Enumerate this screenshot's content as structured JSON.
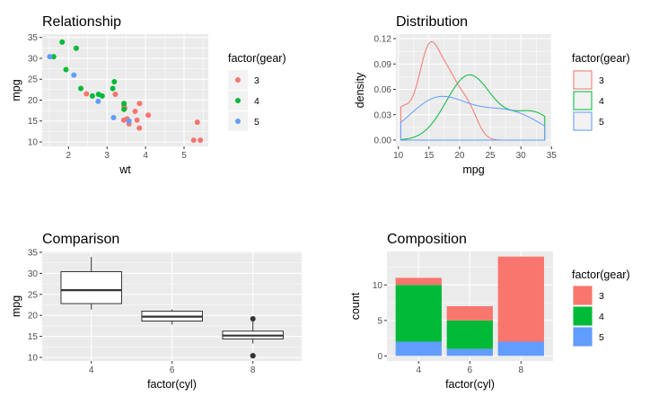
{
  "gear_colors": {
    "3": "#F8766D",
    "4": "#00BA38",
    "5": "#619CFF"
  },
  "chart_data": [
    {
      "type": "scatter",
      "title": "Relationship",
      "xlabel": "wt",
      "ylabel": "mpg",
      "x_ticks": [
        "2",
        "3",
        "4",
        "5"
      ],
      "y_ticks": [
        "10",
        "15",
        "20",
        "25",
        "30",
        "35"
      ],
      "grid": true,
      "legend": {
        "title": "factor(gear)",
        "labels": [
          "3",
          "4",
          "5"
        ],
        "placement": "right"
      },
      "points": [
        {
          "wt": 2.62,
          "mpg": 21.0,
          "gear": "4"
        },
        {
          "wt": 2.875,
          "mpg": 21.0,
          "gear": "4"
        },
        {
          "wt": 2.32,
          "mpg": 22.8,
          "gear": "4"
        },
        {
          "wt": 3.215,
          "mpg": 21.4,
          "gear": "3"
        },
        {
          "wt": 3.44,
          "mpg": 18.7,
          "gear": "3"
        },
        {
          "wt": 3.46,
          "mpg": 18.1,
          "gear": "3"
        },
        {
          "wt": 3.57,
          "mpg": 14.3,
          "gear": "3"
        },
        {
          "wt": 3.19,
          "mpg": 24.4,
          "gear": "4"
        },
        {
          "wt": 3.15,
          "mpg": 22.8,
          "gear": "4"
        },
        {
          "wt": 3.44,
          "mpg": 19.2,
          "gear": "4"
        },
        {
          "wt": 3.44,
          "mpg": 17.8,
          "gear": "4"
        },
        {
          "wt": 4.07,
          "mpg": 16.4,
          "gear": "3"
        },
        {
          "wt": 3.73,
          "mpg": 17.3,
          "gear": "3"
        },
        {
          "wt": 3.78,
          "mpg": 15.2,
          "gear": "3"
        },
        {
          "wt": 5.25,
          "mpg": 10.4,
          "gear": "3"
        },
        {
          "wt": 5.424,
          "mpg": 10.4,
          "gear": "3"
        },
        {
          "wt": 5.345,
          "mpg": 14.7,
          "gear": "3"
        },
        {
          "wt": 2.2,
          "mpg": 32.4,
          "gear": "4"
        },
        {
          "wt": 1.615,
          "mpg": 30.4,
          "gear": "4"
        },
        {
          "wt": 1.835,
          "mpg": 33.9,
          "gear": "4"
        },
        {
          "wt": 2.465,
          "mpg": 21.5,
          "gear": "3"
        },
        {
          "wt": 3.52,
          "mpg": 15.5,
          "gear": "3"
        },
        {
          "wt": 3.435,
          "mpg": 15.2,
          "gear": "3"
        },
        {
          "wt": 3.84,
          "mpg": 13.3,
          "gear": "3"
        },
        {
          "wt": 3.845,
          "mpg": 19.2,
          "gear": "3"
        },
        {
          "wt": 1.935,
          "mpg": 27.3,
          "gear": "4"
        },
        {
          "wt": 2.14,
          "mpg": 26.0,
          "gear": "5"
        },
        {
          "wt": 1.513,
          "mpg": 30.4,
          "gear": "5"
        },
        {
          "wt": 3.17,
          "mpg": 15.8,
          "gear": "5"
        },
        {
          "wt": 2.77,
          "mpg": 19.7,
          "gear": "5"
        },
        {
          "wt": 3.57,
          "mpg": 15.0,
          "gear": "5"
        },
        {
          "wt": 2.78,
          "mpg": 21.4,
          "gear": "4"
        }
      ]
    },
    {
      "type": "area",
      "title": "Distribution",
      "xlabel": "mpg",
      "ylabel": "density",
      "x_ticks": [
        "10",
        "15",
        "20",
        "25",
        "30",
        "35"
      ],
      "y_ticks": [
        "0.00",
        "0.03",
        "0.06",
        "0.09",
        "0.12"
      ],
      "grid": true,
      "legend": {
        "title": "factor(gear)",
        "labels": [
          "3",
          "4",
          "5"
        ],
        "placement": "right"
      },
      "series": [
        {
          "name": "3",
          "mpg": [
            21.4,
            18.7,
            18.1,
            14.3,
            16.4,
            17.3,
            15.2,
            10.4,
            10.4,
            14.7,
            21.5,
            15.5,
            15.2,
            13.3,
            19.2
          ]
        },
        {
          "name": "4",
          "mpg": [
            21.0,
            21.0,
            22.8,
            24.4,
            22.8,
            19.2,
            17.8,
            32.4,
            30.4,
            33.9,
            27.3,
            21.4
          ]
        },
        {
          "name": "5",
          "mpg": [
            26.0,
            30.4,
            15.8,
            19.7,
            15.0
          ]
        }
      ]
    },
    {
      "type": "boxplot",
      "title": "Comparison",
      "xlabel": "factor(cyl)",
      "ylabel": "mpg",
      "x_ticks": [
        "4",
        "6",
        "8"
      ],
      "y_ticks": [
        "10",
        "15",
        "20",
        "25",
        "30",
        "35"
      ],
      "grid": true,
      "boxes": [
        {
          "cyl": "4",
          "lower_whisker": 21.4,
          "q1": 22.8,
          "median": 26.0,
          "q3": 30.4,
          "upper_whisker": 33.9,
          "outliers": []
        },
        {
          "cyl": "6",
          "lower_whisker": 17.8,
          "q1": 18.65,
          "median": 19.7,
          "q3": 21.0,
          "upper_whisker": 21.4,
          "outliers": []
        },
        {
          "cyl": "8",
          "lower_whisker": 13.3,
          "q1": 14.4,
          "median": 15.2,
          "q3": 16.25,
          "upper_whisker": 18.7,
          "outliers": [
            10.4,
            10.4,
            19.2
          ]
        }
      ]
    },
    {
      "type": "bar",
      "stacked": true,
      "title": "Composition",
      "xlabel": "factor(cyl)",
      "ylabel": "count",
      "categories": [
        "4",
        "6",
        "8"
      ],
      "x_ticks": [
        "4",
        "6",
        "8"
      ],
      "y_ticks": [
        "0",
        "5",
        "10"
      ],
      "grid": true,
      "legend": {
        "title": "factor(gear)",
        "labels": [
          "3",
          "4",
          "5"
        ],
        "placement": "right"
      },
      "series": [
        {
          "name": "3",
          "values": [
            1,
            2,
            12
          ]
        },
        {
          "name": "4",
          "values": [
            8,
            4,
            0
          ]
        },
        {
          "name": "5",
          "values": [
            2,
            1,
            2
          ]
        }
      ]
    }
  ]
}
